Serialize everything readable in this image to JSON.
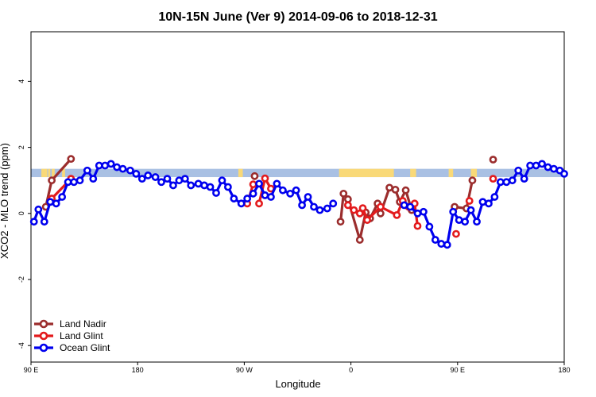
{
  "title": "10N-15N June (Ver 9)   2014-09-06 to 2018-12-31",
  "chart_data": {
    "type": "line",
    "title": "10N-15N June (Ver 9)   2014-09-06 to 2018-12-31",
    "xlabel": "Longitude",
    "ylabel": "XCO2 - MLO trend (ppm)",
    "xlim": [
      90,
      450
    ],
    "ylim": [
      -4.5,
      5.5
    ],
    "xticks": [
      {
        "value": 90,
        "label": "90 E"
      },
      {
        "value": 162,
        "label": "180"
      },
      {
        "value": 234,
        "label": "90 W"
      },
      {
        "value": 306,
        "label": "0"
      },
      {
        "value": 378,
        "label": "90 E"
      },
      {
        "value": 450,
        "label": "180"
      }
    ],
    "yticks": [
      {
        "value": -4,
        "label": "-4"
      },
      {
        "value": -2,
        "label": "-2"
      },
      {
        "value": 0,
        "label": "0"
      },
      {
        "value": 2,
        "label": "2"
      },
      {
        "value": 4,
        "label": "4"
      }
    ],
    "legend_position": "bottom-left",
    "land_band": {
      "y_range": [
        1.1,
        1.35
      ],
      "ocean_color": "#a9c0e3",
      "land_color": "#f9d978",
      "land_segments": [
        [
          97,
          101
        ],
        [
          101.5,
          103
        ],
        [
          104,
          106
        ],
        [
          111,
          113
        ],
        [
          230,
          233
        ],
        [
          298,
          335
        ],
        [
          346,
          350
        ],
        [
          372,
          375
        ],
        [
          387,
          391
        ]
      ]
    },
    "series": [
      {
        "name": "Land Nadir",
        "color": "#9b2d2d",
        "segments": [
          [
            [
              100,
              0.2
            ],
            [
              104,
              1.0
            ],
            [
              117,
              1.65
            ]
          ],
          [
            [
              241,
              1.13
            ]
          ],
          [
            [
              299,
              -0.25
            ],
            [
              301,
              0.6
            ],
            [
              304,
              0.43
            ],
            [
              312,
              -0.8
            ],
            [
              316,
              0.03
            ],
            [
              319,
              -0.15
            ],
            [
              324,
              0.3
            ],
            [
              326,
              0.0
            ],
            [
              332,
              0.78
            ],
            [
              336,
              0.72
            ],
            [
              339,
              0.35
            ],
            [
              343,
              0.7
            ],
            [
              347,
              0.1
            ]
          ],
          [
            [
              376,
              0.2
            ],
            [
              384,
              0.15
            ],
            [
              388,
              1.0
            ]
          ],
          [
            [
              402,
              1.63
            ]
          ]
        ]
      },
      {
        "name": "Land Glint",
        "color": "#e31a1c",
        "segments": [
          [
            [
              104,
              0.45
            ],
            [
              117,
              1.05
            ]
          ],
          [
            [
              236,
              0.3
            ],
            [
              240,
              0.88
            ]
          ],
          [
            [
              244,
              0.3
            ],
            [
              248,
              1.06
            ],
            [
              252,
              0.75
            ]
          ],
          [
            [
              304,
              0.25
            ],
            [
              308,
              0.1
            ],
            [
              312,
              0.0
            ],
            [
              314,
              0.16
            ],
            [
              317,
              -0.2
            ],
            [
              326,
              0.2
            ],
            [
              337,
              -0.05
            ],
            [
              341,
              0.38
            ],
            [
              345,
              0.2
            ],
            [
              349,
              0.3
            ],
            [
              351,
              -0.38
            ]
          ],
          [
            [
              377,
              -0.62
            ]
          ],
          [
            [
              386,
              0.38
            ]
          ],
          [
            [
              402,
              1.05
            ]
          ]
        ]
      },
      {
        "name": "Ocean Glint",
        "color": "#0000ee",
        "segments": [
          [
            [
              92,
              -0.25
            ],
            [
              95,
              0.12
            ],
            [
              99,
              -0.25
            ],
            [
              103,
              0.35
            ],
            [
              107,
              0.3
            ],
            [
              111,
              0.5
            ],
            [
              115,
              0.95
            ],
            [
              119,
              0.95
            ],
            [
              123,
              1.0
            ],
            [
              128,
              1.3
            ],
            [
              132,
              1.05
            ],
            [
              136,
              1.45
            ],
            [
              140,
              1.45
            ],
            [
              144,
              1.5
            ],
            [
              148,
              1.4
            ],
            [
              152,
              1.35
            ],
            [
              157,
              1.3
            ],
            [
              161,
              1.2
            ],
            [
              165,
              1.05
            ],
            [
              169,
              1.15
            ],
            [
              174,
              1.1
            ],
            [
              178,
              0.95
            ],
            [
              182,
              1.05
            ],
            [
              186,
              0.85
            ],
            [
              190,
              1.0
            ],
            [
              194,
              1.05
            ],
            [
              198,
              0.85
            ],
            [
              203,
              0.9
            ],
            [
              207,
              0.85
            ],
            [
              211,
              0.8
            ],
            [
              215,
              0.62
            ],
            [
              219,
              1.0
            ],
            [
              223,
              0.8
            ],
            [
              227,
              0.45
            ],
            [
              232,
              0.3
            ],
            [
              236,
              0.45
            ],
            [
              240,
              0.6
            ],
            [
              244,
              0.9
            ],
            [
              248,
              0.55
            ],
            [
              252,
              0.5
            ],
            [
              256,
              0.9
            ],
            [
              260,
              0.7
            ],
            [
              265,
              0.6
            ],
            [
              269,
              0.7
            ],
            [
              273,
              0.25
            ],
            [
              277,
              0.5
            ],
            [
              281,
              0.2
            ],
            [
              285,
              0.1
            ],
            [
              290,
              0.15
            ],
            [
              294,
              0.3
            ]
          ],
          [
            [
              342,
              0.25
            ],
            [
              346,
              0.2
            ],
            [
              351,
              0.0
            ],
            [
              355,
              0.05
            ],
            [
              359,
              -0.4
            ],
            [
              363,
              -0.8
            ],
            [
              367,
              -0.92
            ],
            [
              371,
              -0.95
            ],
            [
              375,
              0.05
            ],
            [
              379,
              -0.2
            ],
            [
              383,
              -0.25
            ],
            [
              387,
              0.1
            ],
            [
              391,
              -0.25
            ],
            [
              395,
              0.35
            ],
            [
              399,
              0.3
            ],
            [
              403,
              0.5
            ],
            [
              407,
              0.95
            ],
            [
              411,
              0.95
            ],
            [
              415,
              1.0
            ],
            [
              419,
              1.3
            ],
            [
              423,
              1.05
            ],
            [
              427,
              1.45
            ],
            [
              431,
              1.45
            ],
            [
              435,
              1.5
            ],
            [
              439,
              1.4
            ],
            [
              443,
              1.35
            ],
            [
              447,
              1.3
            ],
            [
              450,
              1.2
            ]
          ]
        ]
      }
    ]
  }
}
